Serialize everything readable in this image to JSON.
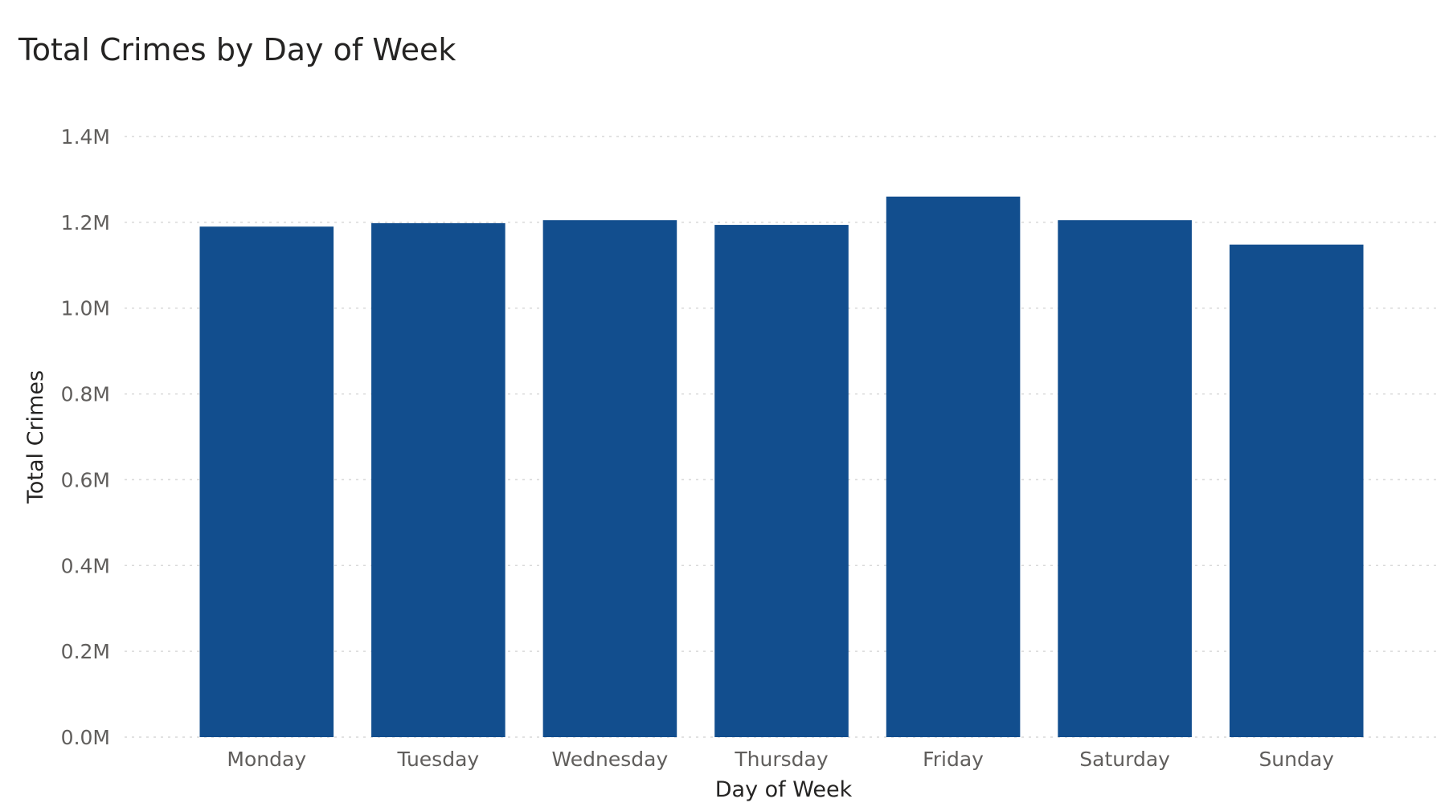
{
  "chart_data": {
    "type": "bar",
    "title": "Total Crimes by Day of Week",
    "xlabel": "Day of Week",
    "ylabel": "Total Crimes",
    "categories": [
      "Monday",
      "Tuesday",
      "Wednesday",
      "Thursday",
      "Friday",
      "Saturday",
      "Sunday"
    ],
    "values": [
      1190000,
      1198000,
      1205000,
      1194000,
      1260000,
      1205000,
      1148000
    ],
    "ylim": [
      0,
      1400000
    ],
    "y_ticks": [
      "0.0M",
      "0.2M",
      "0.4M",
      "0.6M",
      "0.8M",
      "1.0M",
      "1.2M",
      "1.4M"
    ],
    "grid": true,
    "legend": "none",
    "bar_color": "#124E8E",
    "gridline_color": "#d9d9d9"
  }
}
